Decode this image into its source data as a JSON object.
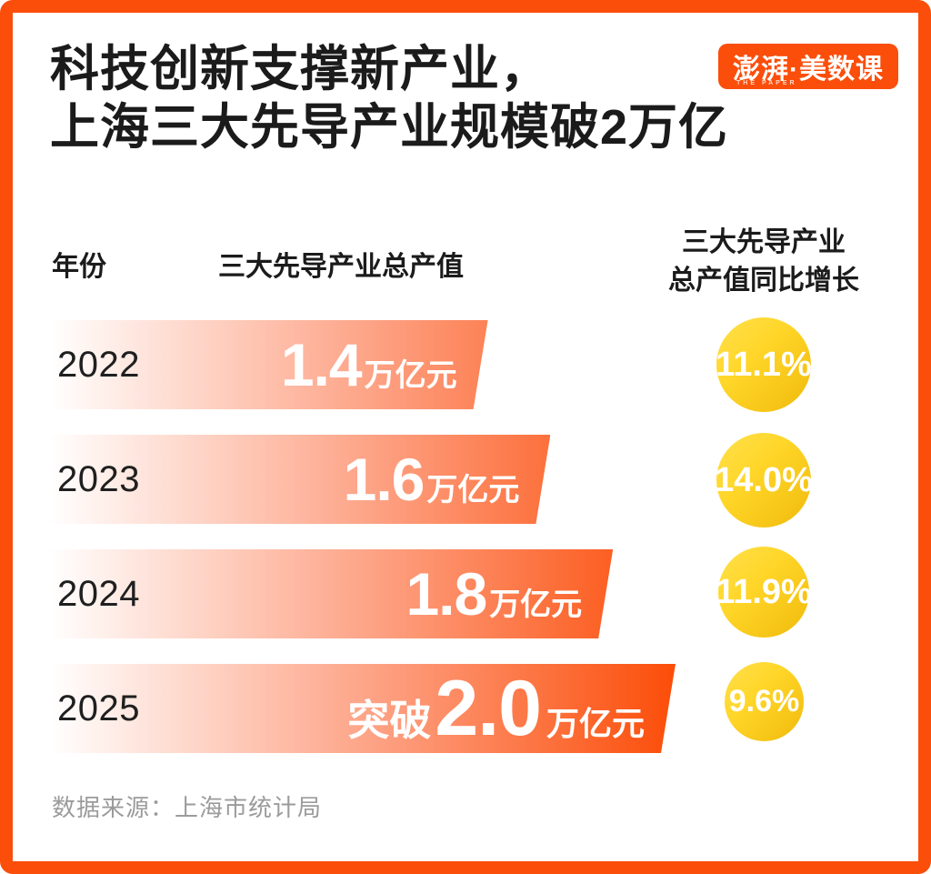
{
  "title": {
    "line1": "科技创新支撑新产业，",
    "line2": "上海三大先导产业规模破2万亿"
  },
  "logo": {
    "text": "澎湃·美数课",
    "subtext": "THE PAPER",
    "bg_color": "#fb4e0a"
  },
  "table": {
    "col_year": "年份",
    "col_value": "三大先导产业总产值",
    "col_growth_line1": "三大先导产业",
    "col_growth_line2": "总产值同比增长"
  },
  "rows": [
    {
      "year": "2022",
      "prefix": "",
      "value": "1.4",
      "unit": "万亿元",
      "growth": "11.1%"
    },
    {
      "year": "2023",
      "prefix": "",
      "value": "1.6",
      "unit": "万亿元",
      "growth": "14.0%"
    },
    {
      "year": "2024",
      "prefix": "",
      "value": "1.8",
      "unit": "万亿元",
      "growth": "11.9%"
    },
    {
      "year": "2025",
      "prefix": "突破",
      "value": "2.0",
      "unit": "万亿元",
      "growth": "9.6%"
    }
  ],
  "footer": {
    "source": "数据来源：上海市统计局"
  },
  "colors": {
    "frame": "#fb4e0a",
    "bar_gradient_start": "#ffffff",
    "bar_gradient_end": "#fc4c07",
    "circle_gradient_start": "#ffe04d",
    "circle_gradient_end": "#f0ba0b",
    "title_text": "#1b1b1b",
    "source_text": "#9b9b9b"
  },
  "chart_data": {
    "type": "bar",
    "orientation": "horizontal",
    "title": "科技创新支撑新产业，上海三大先导产业规模破2万亿",
    "categories": [
      "2022",
      "2023",
      "2024",
      "2025"
    ],
    "series": [
      {
        "name": "三大先导产业总产值（万亿元）",
        "values": [
          1.4,
          1.6,
          1.8,
          2.0
        ]
      },
      {
        "name": "三大先导产业总产值同比增长（%）",
        "values": [
          11.1,
          14.0,
          11.9,
          9.6
        ]
      }
    ],
    "annotations": [
      "2025年总产值为“突破2.0万亿元”"
    ],
    "source": "数据来源：上海市统计局",
    "legend_position": "none",
    "grid": false
  }
}
